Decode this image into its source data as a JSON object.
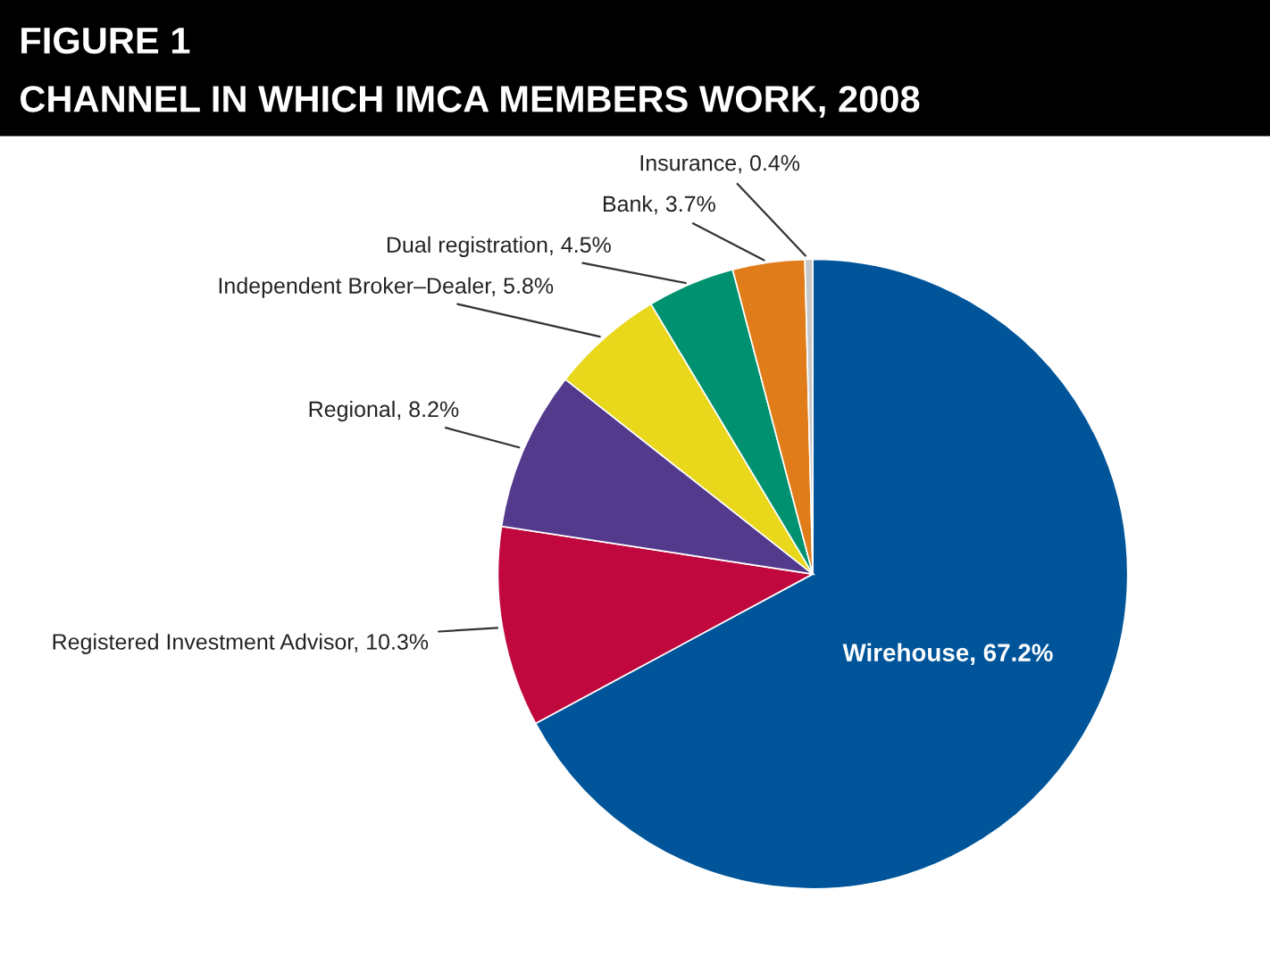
{
  "chart_data": {
    "type": "pie",
    "title": "FIGURE 1",
    "subtitle": "CHANNEL IN WHICH IMCA MEMBERS WORK, 2008",
    "categories": [
      "Wirehouse",
      "Registered Investment Advisor",
      "Regional",
      "Independent Broker–Dealer",
      "Dual registration",
      "Bank",
      "Insurance"
    ],
    "values": [
      67.2,
      10.3,
      8.2,
      5.8,
      4.5,
      3.7,
      0.4
    ],
    "value_labels": [
      "67.2%",
      "10.3%",
      "8.2%",
      "5.8%",
      "4.5%",
      "3.7%",
      "0.4%"
    ],
    "colors": [
      "#00559a",
      "#c0083e",
      "#533a8c",
      "#e8d71b",
      "#009170",
      "#e07d1a",
      "#c8c8c8"
    ],
    "legend": false
  }
}
